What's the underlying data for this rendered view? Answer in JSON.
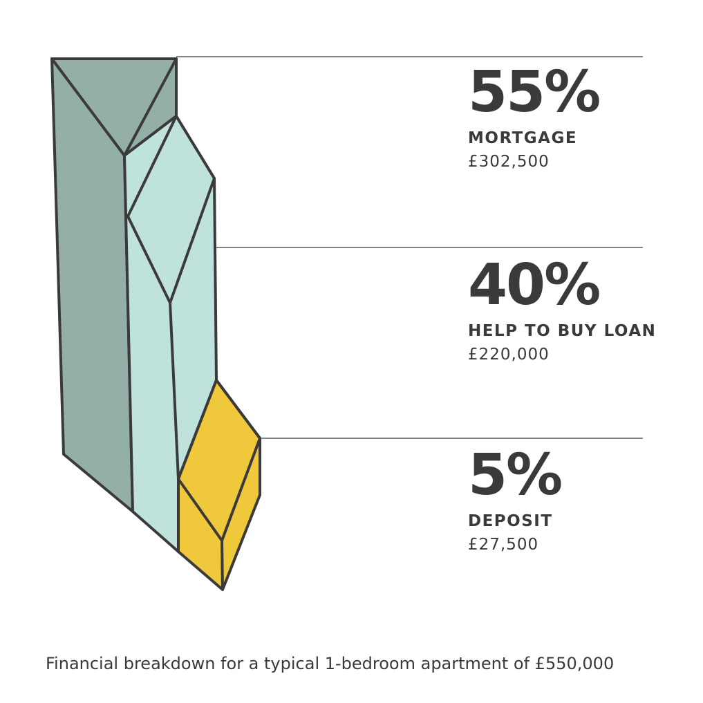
{
  "chart_data": {
    "type": "bar",
    "categories": [
      "MORTGAGE",
      "HELP TO BUY LOAN",
      "DEPOSIT"
    ],
    "values": [
      55,
      40,
      5
    ],
    "unit": "%",
    "segments": [
      {
        "percent_label": "55%",
        "name": "MORTGAGE",
        "amount": "£302,500",
        "color": "#94aea8"
      },
      {
        "percent_label": "40%",
        "name": "HELP TO BUY LOAN",
        "amount": "£220,000",
        "color": "#bfe2dd"
      },
      {
        "percent_label": "5%",
        "name": "DEPOSIT",
        "amount": "£27,500",
        "color": "#f0c83c"
      }
    ],
    "caption": "Financial breakdown for a typical 1-bedroom apartment of £550,000"
  },
  "colors": {
    "outline": "#3a3a3a",
    "divider": "#3a3a3a",
    "text": "#3a3a3a"
  }
}
